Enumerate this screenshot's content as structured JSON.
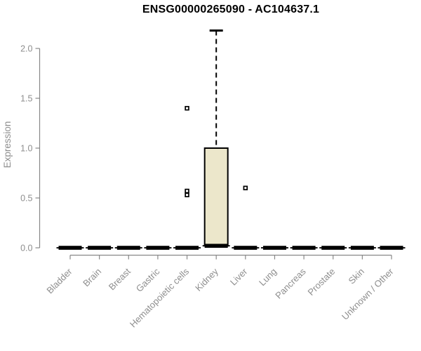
{
  "chart_data": {
    "type": "boxplot",
    "title": "ENSG00000265090 - AC104637.1",
    "xlabel": "",
    "ylabel": "Expression",
    "ylim": [
      0,
      2.2
    ],
    "yticks": [
      "0.0",
      "0.5",
      "1.0",
      "1.5",
      "2.0"
    ],
    "grid": false,
    "legend": false,
    "categories": [
      "Bladder",
      "Brain",
      "Breast",
      "Gastric",
      "Hematopoietic cells",
      "Kidney",
      "Liver",
      "Lung",
      "Pancreas",
      "Prostate",
      "Skin",
      "Unknown / Other"
    ],
    "boxes": [
      {
        "label": "Bladder",
        "low": 0,
        "q1": 0,
        "median": 0,
        "q3": 0,
        "high": 0,
        "outliers": []
      },
      {
        "label": "Brain",
        "low": 0,
        "q1": 0,
        "median": 0,
        "q3": 0,
        "high": 0,
        "outliers": []
      },
      {
        "label": "Breast",
        "low": 0,
        "q1": 0,
        "median": 0,
        "q3": 0,
        "high": 0,
        "outliers": []
      },
      {
        "label": "Gastric",
        "low": 0,
        "q1": 0,
        "median": 0,
        "q3": 0,
        "high": 0,
        "outliers": []
      },
      {
        "label": "Hematopoietic cells",
        "low": 0,
        "q1": 0,
        "median": 0,
        "q3": 0,
        "high": 0,
        "outliers": [
          1.4,
          0.57,
          0.53
        ]
      },
      {
        "label": "Kidney",
        "low": 0,
        "q1": 0.02,
        "median": 0.02,
        "q3": 1.0,
        "high": 2.18,
        "outliers": []
      },
      {
        "label": "Liver",
        "low": 0,
        "q1": 0,
        "median": 0,
        "q3": 0,
        "high": 0,
        "outliers": [
          0.6
        ]
      },
      {
        "label": "Lung",
        "low": 0,
        "q1": 0,
        "median": 0,
        "q3": 0,
        "high": 0,
        "outliers": []
      },
      {
        "label": "Pancreas",
        "low": 0,
        "q1": 0,
        "median": 0,
        "q3": 0,
        "high": 0,
        "outliers": []
      },
      {
        "label": "Prostate",
        "low": 0,
        "q1": 0,
        "median": 0,
        "q3": 0,
        "high": 0,
        "outliers": []
      },
      {
        "label": "Skin",
        "low": 0,
        "q1": 0,
        "median": 0,
        "q3": 0,
        "high": 0,
        "outliers": []
      },
      {
        "label": "Unknown / Other",
        "low": 0,
        "q1": 0,
        "median": 0,
        "q3": 0,
        "high": 0,
        "outliers": []
      }
    ],
    "colors": {
      "box_fill": "#ece7cb",
      "box_stroke": "#000000",
      "axis": "#888888",
      "tick_text": "#8e8e8e",
      "title_text": "#000000",
      "background": "#ffffff"
    }
  }
}
